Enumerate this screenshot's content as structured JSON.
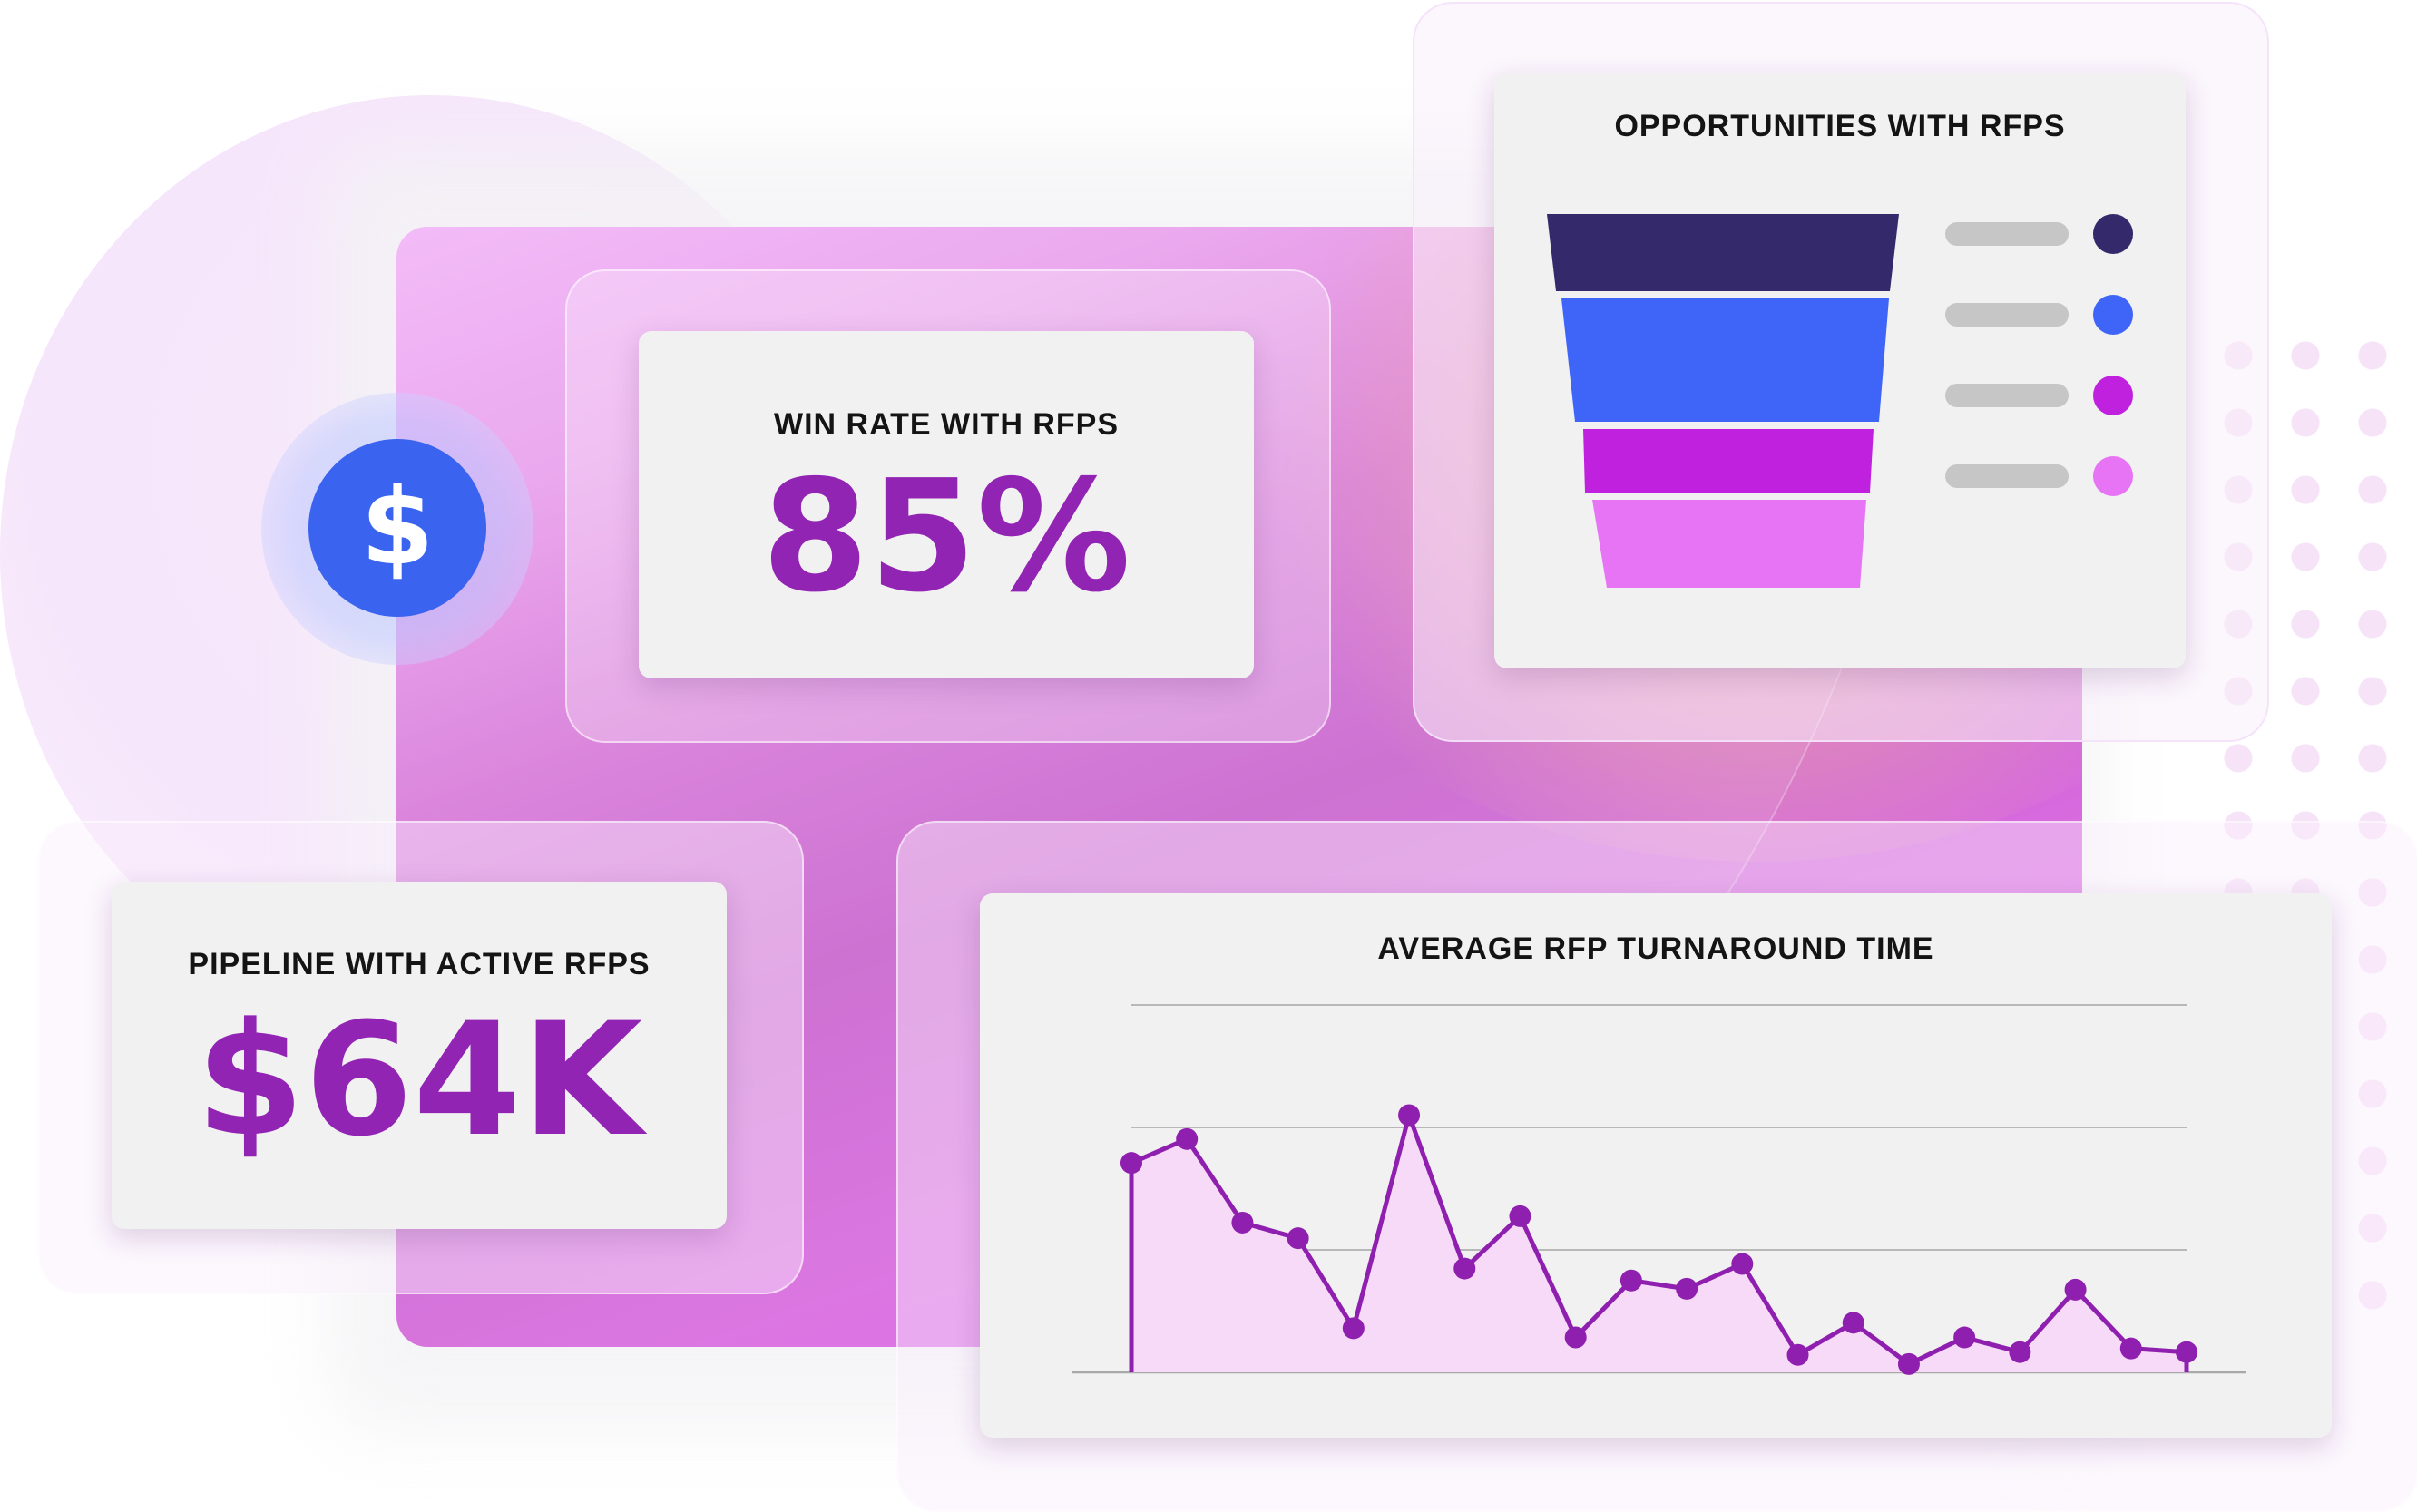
{
  "win_rate": {
    "title": "WIN RATE WITH RFPS",
    "value": "85%"
  },
  "pipeline": {
    "title": "PIPELINE WITH ACTIVE RFPS",
    "value": "$64K"
  },
  "opportunities": {
    "title": "OPPORTUNITIES WITH RFPS",
    "colors": [
      "#33296b",
      "#3f65f8",
      "#c021de",
      "#e674f5"
    ],
    "legend_colors": [
      "#33296b",
      "#3f65f8",
      "#c021de",
      "#e674f5"
    ]
  },
  "coin": {
    "icon": "dollar-icon",
    "symbol": "$",
    "color": "#3a63ef"
  },
  "chart_data": {
    "type": "area",
    "title": "AVERAGE RFP TURNAROUND TIME",
    "xlabel": "",
    "ylabel": "",
    "ylim": [
      0,
      4
    ],
    "grid": true,
    "y": [
      2.28,
      2.54,
      1.63,
      1.46,
      0.48,
      2.8,
      1.13,
      1.7,
      0.38,
      1.0,
      0.91,
      1.18,
      0.19,
      0.54,
      0.09,
      0.38,
      0.22,
      0.9,
      0.26,
      0.22
    ],
    "colors": {
      "line": "#8f1fae",
      "fill": "#f7d9f8",
      "axis": "#a9a9a9"
    }
  }
}
